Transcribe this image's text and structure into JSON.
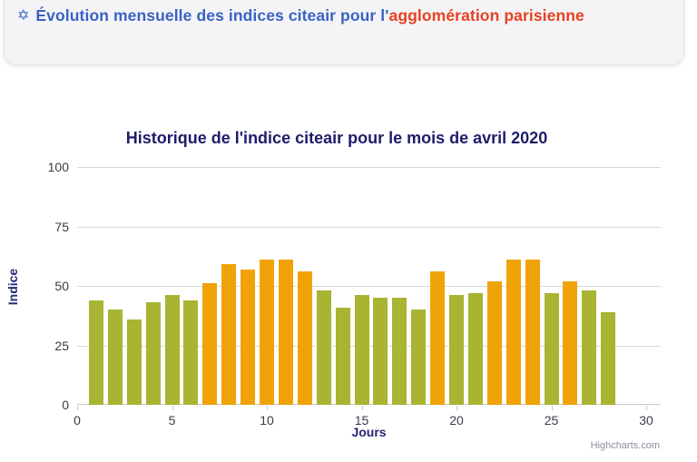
{
  "header": {
    "icon": "✡",
    "title_blue": "Évolution mensuelle des indices citeair pour l'",
    "title_red": "agglomération parisienne"
  },
  "chart": {
    "credits": "Highcharts.com"
  },
  "chart_data": {
    "type": "bar",
    "title": "Historique de l'indice citeair pour le mois de avril 2020",
    "xlabel": "Jours",
    "ylabel": "Indice",
    "categories": [
      1,
      2,
      3,
      4,
      5,
      6,
      7,
      8,
      9,
      10,
      11,
      12,
      13,
      14,
      15,
      16,
      17,
      18,
      19,
      20,
      21,
      22,
      23,
      24,
      25,
      26,
      27,
      28
    ],
    "values": [
      44,
      40,
      36,
      43,
      46,
      44,
      51,
      59,
      57,
      61,
      61,
      56,
      48,
      41,
      46,
      45,
      45,
      40,
      56,
      46,
      47,
      52,
      61,
      61,
      47,
      52,
      48,
      39
    ],
    "xticks": [
      0,
      5,
      10,
      15,
      20,
      25,
      30
    ],
    "yticks": [
      0,
      25,
      50,
      75,
      100
    ],
    "ylim": [
      0,
      100
    ],
    "xlim": [
      0,
      30.8
    ],
    "grid": "horizontal-only",
    "legend": "none",
    "color_threshold": 50,
    "colors": {
      "low_green": "#a8b432",
      "medium_orange": "#f0a306",
      "title_navy": "#1d1d6b",
      "axis_title_navy": "#262677",
      "tick_label": "#3b3b47",
      "gridline": "#d9d9d9",
      "header_blue": "#3a62c4",
      "header_red": "#e84120",
      "header_bg": "#f4f4f6"
    }
  }
}
